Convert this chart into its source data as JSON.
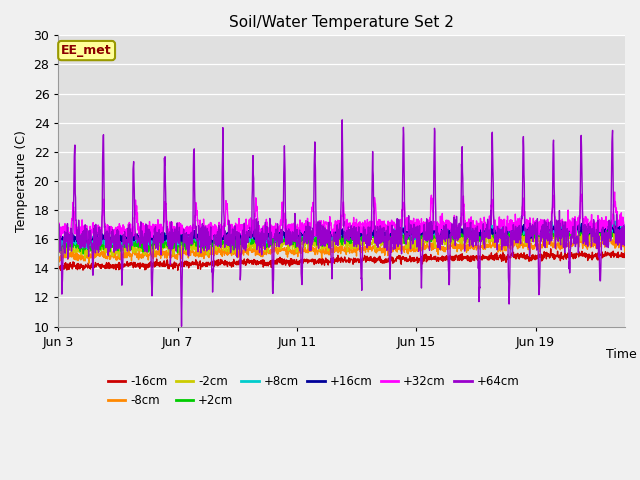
{
  "title": "Soil/Water Temperature Set 2",
  "ylabel": "Temperature (C)",
  "xlabel": "Time",
  "ylim": [
    10,
    30
  ],
  "annotation": "EE_met",
  "annotation_color": "#8B0000",
  "annotation_bg": "#FFFF99",
  "series": [
    {
      "label": "-16cm",
      "color": "#CC0000",
      "base": 14.1,
      "trend": 0.045,
      "amp": 0.2,
      "noise": 0.12
    },
    {
      "label": "-8cm",
      "color": "#FF8800",
      "base": 14.8,
      "trend": 0.05,
      "amp": 0.25,
      "noise": 0.15
    },
    {
      "label": "-2cm",
      "color": "#CCCC00",
      "base": 15.2,
      "trend": 0.055,
      "amp": 0.3,
      "noise": 0.18
    },
    {
      "label": "+2cm",
      "color": "#00CC00",
      "base": 15.5,
      "trend": 0.058,
      "amp": 0.32,
      "noise": 0.18
    },
    {
      "label": "+8cm",
      "color": "#00CCCC",
      "base": 15.8,
      "trend": 0.055,
      "amp": 0.3,
      "noise": 0.15
    },
    {
      "label": "+16cm",
      "color": "#000099",
      "base": 16.0,
      "trend": 0.04,
      "amp": 0.35,
      "noise": 0.15
    },
    {
      "label": "+32cm",
      "color": "#FF00FF",
      "base": 16.5,
      "trend": 0.03,
      "amp": 1.8,
      "noise": 0.3
    },
    {
      "label": "+64cm",
      "color": "#9900CC",
      "base": 16.0,
      "trend": 0.02,
      "amp": 7.5,
      "noise": 0.5
    }
  ],
  "xtick_labels": [
    "Jun 3",
    "Jun 7",
    "Jun 11",
    "Jun 15",
    "Jun 19"
  ],
  "xtick_positions": [
    0,
    4,
    8,
    12,
    16
  ],
  "n_days": 19,
  "fig_bg": "#F0F0F0",
  "plot_bg": "#E0E0E0"
}
